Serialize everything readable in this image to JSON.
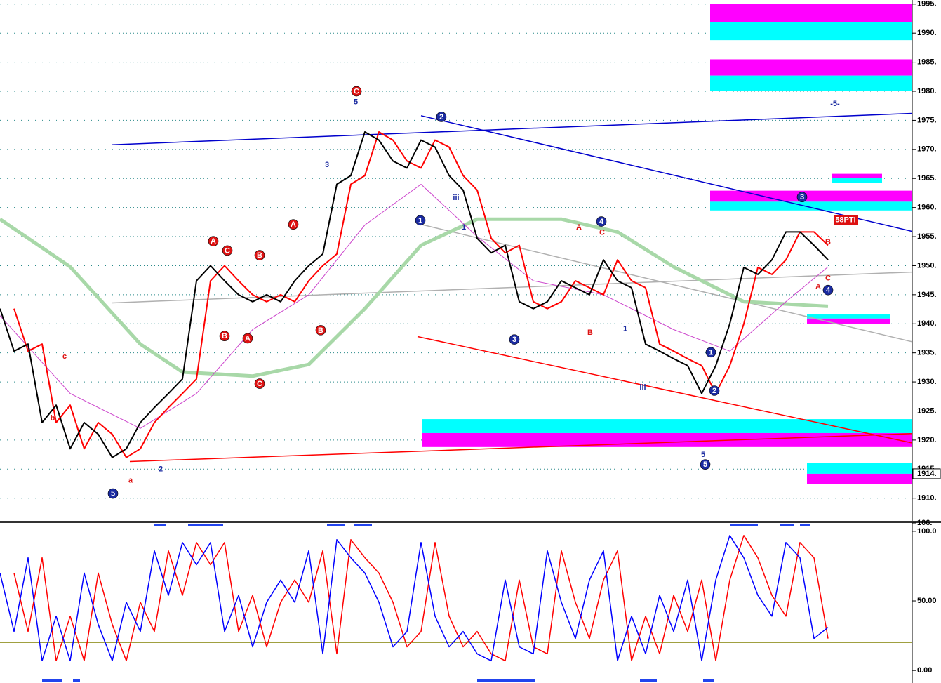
{
  "chart_data": [
    {
      "type": "line",
      "xlim": [
        0,
        65
      ],
      "ylim": [
        1906.1,
        1995.7
      ],
      "grid": true,
      "yticks": [
        {
          "value": 1910,
          "label": "1910."
        },
        {
          "value": 1915,
          "label": "1915."
        },
        {
          "value": 1920,
          "label": "1920."
        },
        {
          "value": 1925,
          "label": "1925."
        },
        {
          "value": 1930,
          "label": "1930."
        },
        {
          "value": 1935,
          "label": "1935."
        },
        {
          "value": 1940,
          "label": "1940."
        },
        {
          "value": 1945,
          "label": "1945."
        },
        {
          "value": 1950,
          "label": "1950."
        },
        {
          "value": 1955,
          "label": "1955."
        },
        {
          "value": 1960,
          "label": "1960."
        },
        {
          "value": 1965,
          "label": "1965."
        },
        {
          "value": 1970,
          "label": "1970."
        },
        {
          "value": 1975,
          "label": "1975."
        },
        {
          "value": 1980,
          "label": "1980."
        },
        {
          "value": 1985,
          "label": "1985."
        },
        {
          "value": 1990,
          "label": "1990."
        },
        {
          "value": 1995,
          "label": "1995."
        }
      ],
      "last_price": {
        "value": 1914.2,
        "label": "1914."
      },
      "zones": [
        {
          "x": [
            50.6,
            65
          ],
          "y": [
            1991.9,
            1995
          ],
          "color": "#ff00ff"
        },
        {
          "x": [
            50.6,
            65
          ],
          "y": [
            1988.8,
            1991.9
          ],
          "color": "#00ffff"
        },
        {
          "x": [
            50.6,
            65
          ],
          "y": [
            1982.7,
            1985.5
          ],
          "color": "#ff00ff"
        },
        {
          "x": [
            50.6,
            65
          ],
          "y": [
            1980,
            1982.7
          ],
          "color": "#00ffff"
        },
        {
          "x": [
            50.6,
            65
          ],
          "y": [
            1961,
            1962.9
          ],
          "color": "#ff00ff"
        },
        {
          "x": [
            50.6,
            65
          ],
          "y": [
            1959.5,
            1961
          ],
          "color": "#00ffff"
        },
        {
          "x": [
            59.25,
            62.85
          ],
          "y": [
            1965.1,
            1965.8
          ],
          "color": "#ff00ff"
        },
        {
          "x": [
            59.25,
            62.85
          ],
          "y": [
            1964.3,
            1965.1
          ],
          "color": "#00ffff"
        },
        {
          "x": [
            57.5,
            63.4
          ],
          "y": [
            1940.9,
            1941.6
          ],
          "color": "#00ffff"
        },
        {
          "x": [
            57.5,
            63.4
          ],
          "y": [
            1940,
            1940.9
          ],
          "color": "#ff00ff"
        },
        {
          "x": [
            30.1,
            65
          ],
          "y": [
            1921.2,
            1923.6
          ],
          "color": "#00ffff"
        },
        {
          "x": [
            30.1,
            65
          ],
          "y": [
            1918.8,
            1921.2
          ],
          "color": "#ff00ff"
        },
        {
          "x": [
            57.5,
            65
          ],
          "y": [
            1914.2,
            1916.1
          ],
          "color": "#00ffff"
        },
        {
          "x": [
            57.5,
            65
          ],
          "y": [
            1912.4,
            1914.2
          ],
          "color": "#ff00ff"
        }
      ],
      "lines": [
        {
          "x": [
            8,
            65
          ],
          "y": [
            1970.8,
            1976.2
          ],
          "color": "#0000cc"
        },
        {
          "x": [
            30,
            65
          ],
          "y": [
            1975.8,
            1955.9
          ],
          "color": "#0000cc"
        },
        {
          "x": [
            9.25,
            65
          ],
          "y": [
            1916.3,
            1921.1
          ],
          "color": "#ff0000"
        },
        {
          "x": [
            29.75,
            65
          ],
          "y": [
            1937.8,
            1919.5
          ],
          "color": "#ff0000"
        },
        {
          "x": [
            8,
            65
          ],
          "y": [
            1943.6,
            1948.9
          ],
          "color": "#b0b0b0"
        },
        {
          "x": [
            30,
            65
          ],
          "y": [
            1957.1,
            1936.9
          ],
          "color": "#b0b0b0"
        }
      ],
      "series": [
        {
          "color": "#a8d8a8",
          "width": 5,
          "x": [
            0,
            5,
            10,
            13,
            18,
            22,
            26,
            30,
            34,
            40,
            44,
            48,
            53,
            59
          ],
          "values": [
            1958,
            1949.8,
            1936.5,
            1931.7,
            1931,
            1933,
            1942.6,
            1953.5,
            1958,
            1958,
            1955.8,
            1949.8,
            1943.8,
            1943
          ]
        },
        {
          "color": "#cc44cc",
          "width": 1,
          "x": [
            0,
            5,
            10,
            14,
            18,
            22,
            26,
            30,
            34,
            38,
            43,
            48,
            52,
            56,
            59
          ],
          "values": [
            1941.4,
            1928,
            1922,
            1928,
            1939,
            1945,
            1957,
            1964,
            1955,
            1947.4,
            1945,
            1939,
            1935.3,
            1943.8,
            1949.8
          ]
        },
        {
          "color": "#ff0000",
          "width": 2,
          "values": [
            null,
            1942.6,
            1935.3,
            1936.5,
            1923,
            1926,
            1918.5,
            1923,
            1921,
            1917,
            1918.5,
            1923,
            1925.6,
            1928,
            1930.5,
            1947.4,
            1950,
            1947.4,
            1945,
            1943.8,
            1945,
            1943.8,
            1947.4,
            1950,
            1952,
            1964,
            1965.5,
            1973,
            1971.6,
            1968,
            1966.8,
            1971.6,
            1970.4,
            1965.5,
            1963,
            1954.7,
            1952.2,
            1953.5,
            1943.8,
            1942.6,
            1943.8,
            1947.4,
            1946.2,
            1945,
            1951,
            1947.4,
            1946.2,
            1936.5,
            1935.3,
            1934,
            1932.8,
            1928,
            1932.8,
            1940,
            1949.7,
            1948.5,
            1951,
            1955.8,
            1955.8,
            1953.5
          ]
        },
        {
          "color": "#000000",
          "width": 2,
          "values": [
            1942.6,
            1935.3,
            1936.5,
            1923,
            1926,
            1918.5,
            1923,
            1921,
            1917,
            1918.5,
            1923,
            1925.6,
            1928,
            1930.5,
            1947.4,
            1950,
            1947.4,
            1945,
            1943.8,
            1945,
            1943.8,
            1947.4,
            1950,
            1952,
            1964,
            1965.5,
            1973,
            1971.6,
            1968,
            1966.8,
            1971.6,
            1970.4,
            1965.5,
            1963,
            1954.7,
            1952.2,
            1953.5,
            1943.8,
            1942.6,
            1943.8,
            1947.4,
            1946.2,
            1945,
            1951,
            1947.4,
            1946.2,
            1936.5,
            1935.3,
            1934,
            1932.8,
            1928,
            1932.8,
            1940,
            1949.7,
            1948.5,
            1951,
            1955.8,
            1955.8,
            1953.5,
            1951
          ]
        }
      ],
      "annotations": [
        {
          "text": "5",
          "x": 8.05,
          "y": 1910.8,
          "color": "#1a2aa0",
          "circle": true
        },
        {
          "text": "5",
          "x": 50.25,
          "y": 1915.8,
          "color": "#1a2aa0",
          "circle": true
        },
        {
          "text": "3",
          "x": 36.65,
          "y": 1937.3,
          "color": "#1a2aa0",
          "circle": true
        },
        {
          "text": "1",
          "x": 29.95,
          "y": 1957.8,
          "color": "#1a2aa0",
          "circle": true
        },
        {
          "text": "2",
          "x": 31.45,
          "y": 1975.6,
          "color": "#1a2aa0",
          "circle": true
        },
        {
          "text": "4",
          "x": 42.85,
          "y": 1957.6,
          "color": "#1a2aa0",
          "circle": true
        },
        {
          "text": "3",
          "x": 57.15,
          "y": 1961.8,
          "color": "#1a2aa0",
          "circle": true
        },
        {
          "text": "4",
          "x": 59,
          "y": 1945.8,
          "color": "#1a2aa0",
          "circle": true
        },
        {
          "text": "1",
          "x": 50.65,
          "y": 1935.1,
          "color": "#1a2aa0",
          "circle": true
        },
        {
          "text": "2",
          "x": 50.9,
          "y": 1928.5,
          "color": "#1a2aa0",
          "circle": true
        },
        {
          "text": "C",
          "x": 25.4,
          "y": 1980,
          "color": "#dd1111",
          "circle": true
        },
        {
          "text": "A",
          "x": 15.2,
          "y": 1954.2,
          "color": "#dd1111",
          "circle": true
        },
        {
          "text": "C",
          "x": 16.2,
          "y": 1952.6,
          "color": "#dd1111",
          "circle": true
        },
        {
          "text": "B",
          "x": 16,
          "y": 1937.9,
          "color": "#dd1111",
          "circle": true
        },
        {
          "text": "A",
          "x": 17.65,
          "y": 1937.5,
          "color": "#dd1111",
          "circle": true
        },
        {
          "text": "B",
          "x": 18.5,
          "y": 1951.8,
          "color": "#dd1111",
          "circle": true
        },
        {
          "text": "C",
          "x": 18.5,
          "y": 1929.7,
          "color": "#dd1111",
          "circle": true
        },
        {
          "text": "A",
          "x": 20.9,
          "y": 1957.1,
          "color": "#dd1111",
          "circle": true
        },
        {
          "text": "B",
          "x": 22.85,
          "y": 1938.9,
          "color": "#dd1111",
          "circle": true
        },
        {
          "text": "5",
          "x": 25.35,
          "y": 1978.2,
          "color": "#1a2aa0",
          "circle": false
        },
        {
          "text": "3",
          "x": 23.3,
          "y": 1967.4,
          "color": "#1a2aa0",
          "circle": false
        },
        {
          "text": "1",
          "x": 33.05,
          "y": 1956.6,
          "color": "#1a2aa0",
          "circle": false
        },
        {
          "text": "-5-",
          "x": 59.5,
          "y": 1977.9,
          "color": "#1a2aa0",
          "circle": false
        },
        {
          "text": "1",
          "x": 44.55,
          "y": 1939.2,
          "color": "#1a2aa0",
          "circle": false
        },
        {
          "text": "A",
          "x": 41.25,
          "y": 1956.6,
          "color": "#dd1111",
          "circle": false
        },
        {
          "text": "C",
          "x": 42.9,
          "y": 1955.7,
          "color": "#dd1111",
          "circle": false
        },
        {
          "text": "B",
          "x": 42.05,
          "y": 1938.5,
          "color": "#dd1111",
          "circle": false
        },
        {
          "text": "c",
          "x": 4.6,
          "y": 1934.4,
          "color": "#dd1111",
          "circle": false
        },
        {
          "text": "b",
          "x": 3.75,
          "y": 1923.8,
          "color": "#dd1111",
          "circle": false
        },
        {
          "text": "a",
          "x": 9.3,
          "y": 1913.1,
          "color": "#dd1111",
          "circle": false
        },
        {
          "text": "2",
          "x": 11.45,
          "y": 1915,
          "color": "#1a2aa0",
          "circle": false
        },
        {
          "text": "5",
          "x": 50.1,
          "y": 1917.5,
          "color": "#1a2aa0",
          "circle": false
        },
        {
          "text": "C",
          "x": 59,
          "y": 1947.9,
          "color": "#dd1111",
          "circle": false
        },
        {
          "text": "A",
          "x": 58.3,
          "y": 1946.4,
          "color": "#dd1111",
          "circle": false
        },
        {
          "text": "B",
          "x": 59,
          "y": 1954.1,
          "color": "#dd1111",
          "circle": false
        },
        {
          "text": "iii",
          "x": 32.5,
          "y": 1961.7,
          "color": "#1a2aa0",
          "circle": false
        },
        {
          "text": "iii",
          "x": 45.8,
          "y": 1929.1,
          "color": "#1a2aa0",
          "circle": false
        },
        {
          "text": "58PTI",
          "x": 60.25,
          "y": 1957.9,
          "color": "#dd1111",
          "box": true
        }
      ]
    },
    {
      "type": "line",
      "xlim": [
        0,
        65
      ],
      "ylim": [
        -9,
        106
      ],
      "grid": false,
      "yticks": [
        {
          "value": 0,
          "label": "0.00"
        },
        {
          "value": 50,
          "label": "50.00"
        },
        {
          "value": 100,
          "label": "100.0"
        },
        {
          "value": 106,
          "label": "106."
        }
      ],
      "levels": [
        20,
        80
      ],
      "series": [
        {
          "color": "#ff0000",
          "width": 1.5,
          "values": [
            null,
            70,
            28,
            81,
            7,
            39,
            7,
            70,
            33,
            7,
            49,
            28,
            86,
            54,
            92,
            76,
            92,
            28,
            54,
            17,
            49,
            65,
            49,
            86,
            12,
            94,
            81,
            70,
            49,
            17,
            28,
            92,
            39,
            17,
            28,
            12,
            7,
            65,
            17,
            12,
            86,
            49,
            23,
            65,
            86,
            7,
            39,
            12,
            54,
            28,
            65,
            7,
            65,
            97,
            81,
            54,
            39,
            92,
            81,
            23
          ]
        },
        {
          "color": "#0000ff",
          "width": 1.5,
          "values": [
            70,
            28,
            81,
            7,
            39,
            7,
            70,
            33,
            7,
            49,
            28,
            86,
            54,
            92,
            76,
            92,
            28,
            54,
            17,
            49,
            65,
            49,
            86,
            12,
            94,
            81,
            70,
            49,
            17,
            28,
            92,
            39,
            17,
            28,
            12,
            7,
            65,
            17,
            12,
            86,
            49,
            23,
            65,
            86,
            7,
            39,
            12,
            54,
            28,
            65,
            7,
            65,
            97,
            81,
            54,
            39,
            92,
            81,
            23,
            31
          ]
        }
      ]
    }
  ]
}
